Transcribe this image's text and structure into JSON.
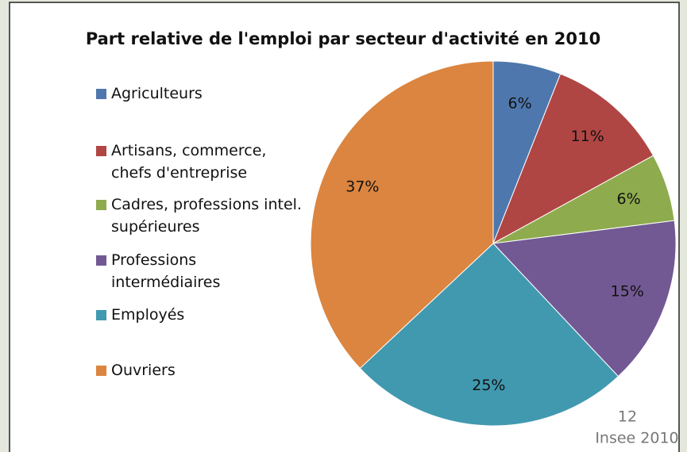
{
  "chart_data": {
    "type": "pie",
    "title": "Part relative de l'emploi par secteur d'activité en 2010",
    "categories": [
      "Agriculteurs",
      "Artisans, commerce, chefs d'entreprise",
      "Cadres, professions intel. supérieures",
      "Professions intermédiaires",
      "Employés",
      "Ouvriers"
    ],
    "values": [
      6,
      11,
      6,
      15,
      25,
      37
    ],
    "value_labels": [
      "6%",
      "11%",
      "6%",
      "15%",
      "25%",
      "37%"
    ],
    "colors": [
      "#4e78ad",
      "#b04644",
      "#8eab4e",
      "#725993",
      "#4199b0",
      "#db8540"
    ],
    "legend": "left"
  },
  "page_number": "12",
  "source": "Insee 2010"
}
